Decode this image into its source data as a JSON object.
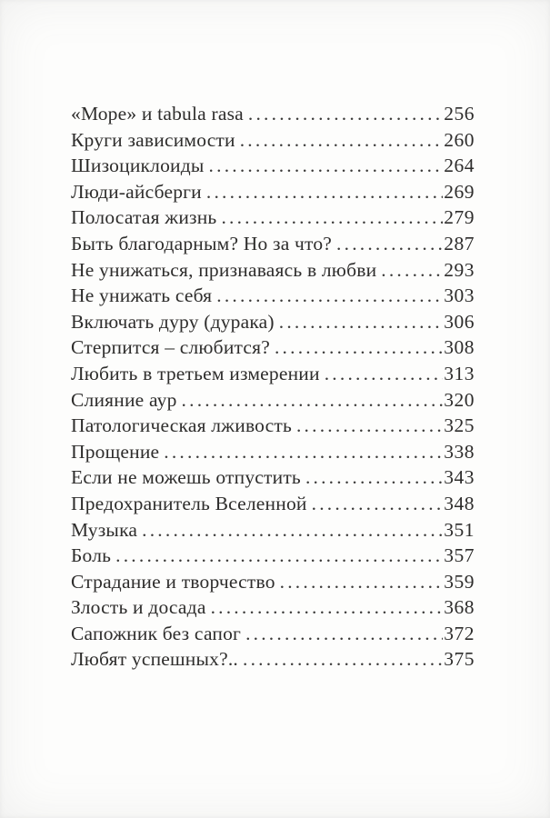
{
  "document": {
    "kind": "book-table-of-contents",
    "language": "ru"
  },
  "colors": {
    "text": "#2e2d2c",
    "background": "#fdfdfc"
  },
  "toc": {
    "leader_char": ".",
    "entries": [
      {
        "title": "«Море» и tabula rasa",
        "page": "256"
      },
      {
        "title": "Круги зависимости",
        "page": "260"
      },
      {
        "title": "Шизоциклоиды",
        "page": "264"
      },
      {
        "title": "Люди-айсберги",
        "page": "269"
      },
      {
        "title": "Полосатая жизнь",
        "page": "279"
      },
      {
        "title": "Быть благодарным? Но за что?",
        "page": "287"
      },
      {
        "title": "Не унижаться, признаваясь в любви",
        "page": "293"
      },
      {
        "title": "Не унижать себя",
        "page": "303"
      },
      {
        "title": "Включать дуру (дурака)",
        "page": "306"
      },
      {
        "title": "Стерпится – слюбится?",
        "page": "308"
      },
      {
        "title": "Любить в третьем измерении",
        "page": "313"
      },
      {
        "title": "Слияние аур",
        "page": "320"
      },
      {
        "title": "Патологическая лживость",
        "page": "325"
      },
      {
        "title": "Прощение",
        "page": "338"
      },
      {
        "title": "Если не можешь отпустить",
        "page": "343"
      },
      {
        "title": "Предохранитель Вселенной",
        "page": "348"
      },
      {
        "title": "Музыка",
        "page": "351"
      },
      {
        "title": "Боль",
        "page": "357"
      },
      {
        "title": "Страдание и творчество",
        "page": "359"
      },
      {
        "title": "Злость и досада",
        "page": "368"
      },
      {
        "title": "Сапожник без сапог",
        "page": "372"
      },
      {
        "title": "Любят успешных?..",
        "page": "375"
      }
    ]
  }
}
